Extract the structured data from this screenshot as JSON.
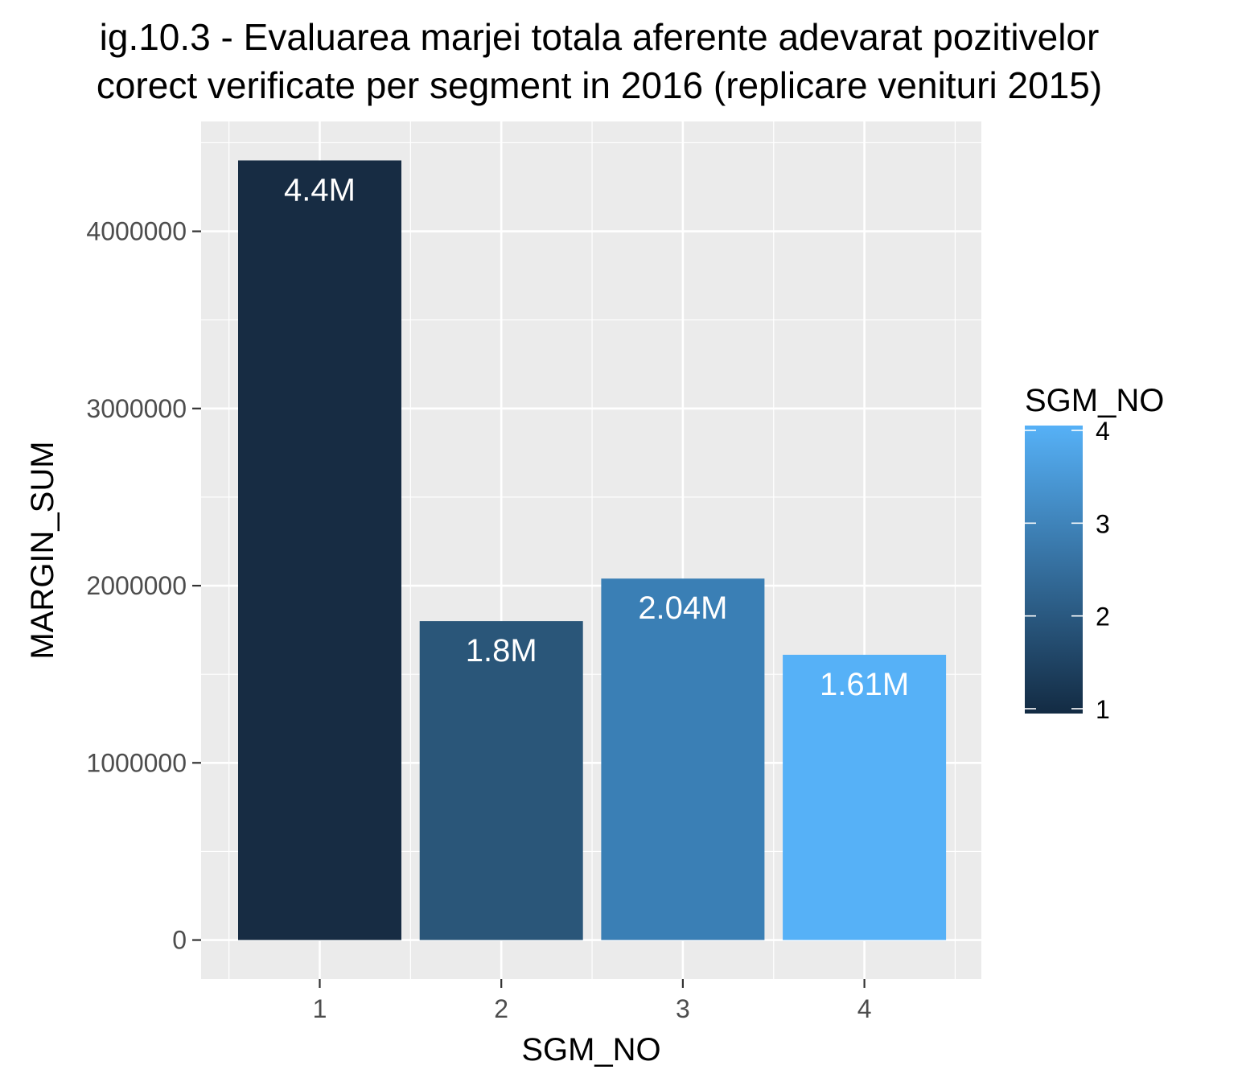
{
  "chart_data": {
    "type": "bar",
    "title_lines": [
      "ig.10.3 - Evaluarea marjei totala aferente adevarat pozitivelor",
      "corect verificate per segment in 2016 (replicare venituri 2015)"
    ],
    "xlabel": "SGM_NO",
    "ylabel": "MARGIN_SUM",
    "categories": [
      "1",
      "2",
      "3",
      "4"
    ],
    "values": [
      4400000,
      1800000,
      2040000,
      1610000
    ],
    "data_labels": [
      "4.4M",
      "1.8M",
      "2.04M",
      "1.61M"
    ],
    "bar_colors": [
      "#172C43",
      "#2A5679",
      "#3A7FB5",
      "#56B1F7"
    ],
    "yticks": [
      0,
      1000000,
      2000000,
      3000000,
      4000000
    ],
    "ytick_labels": [
      "0",
      "1000000",
      "2000000",
      "3000000",
      "4000000"
    ],
    "ylim": [
      -220000,
      4620000
    ],
    "grid": true,
    "panel_background": "#EBEBEB",
    "legend": {
      "title": "SGM_NO",
      "type": "colorbar",
      "position": "right",
      "range": [
        1,
        4
      ],
      "ticks": [
        "1",
        "2",
        "3",
        "4"
      ],
      "low_color": "#132B43",
      "high_color": "#56B1F7"
    }
  }
}
